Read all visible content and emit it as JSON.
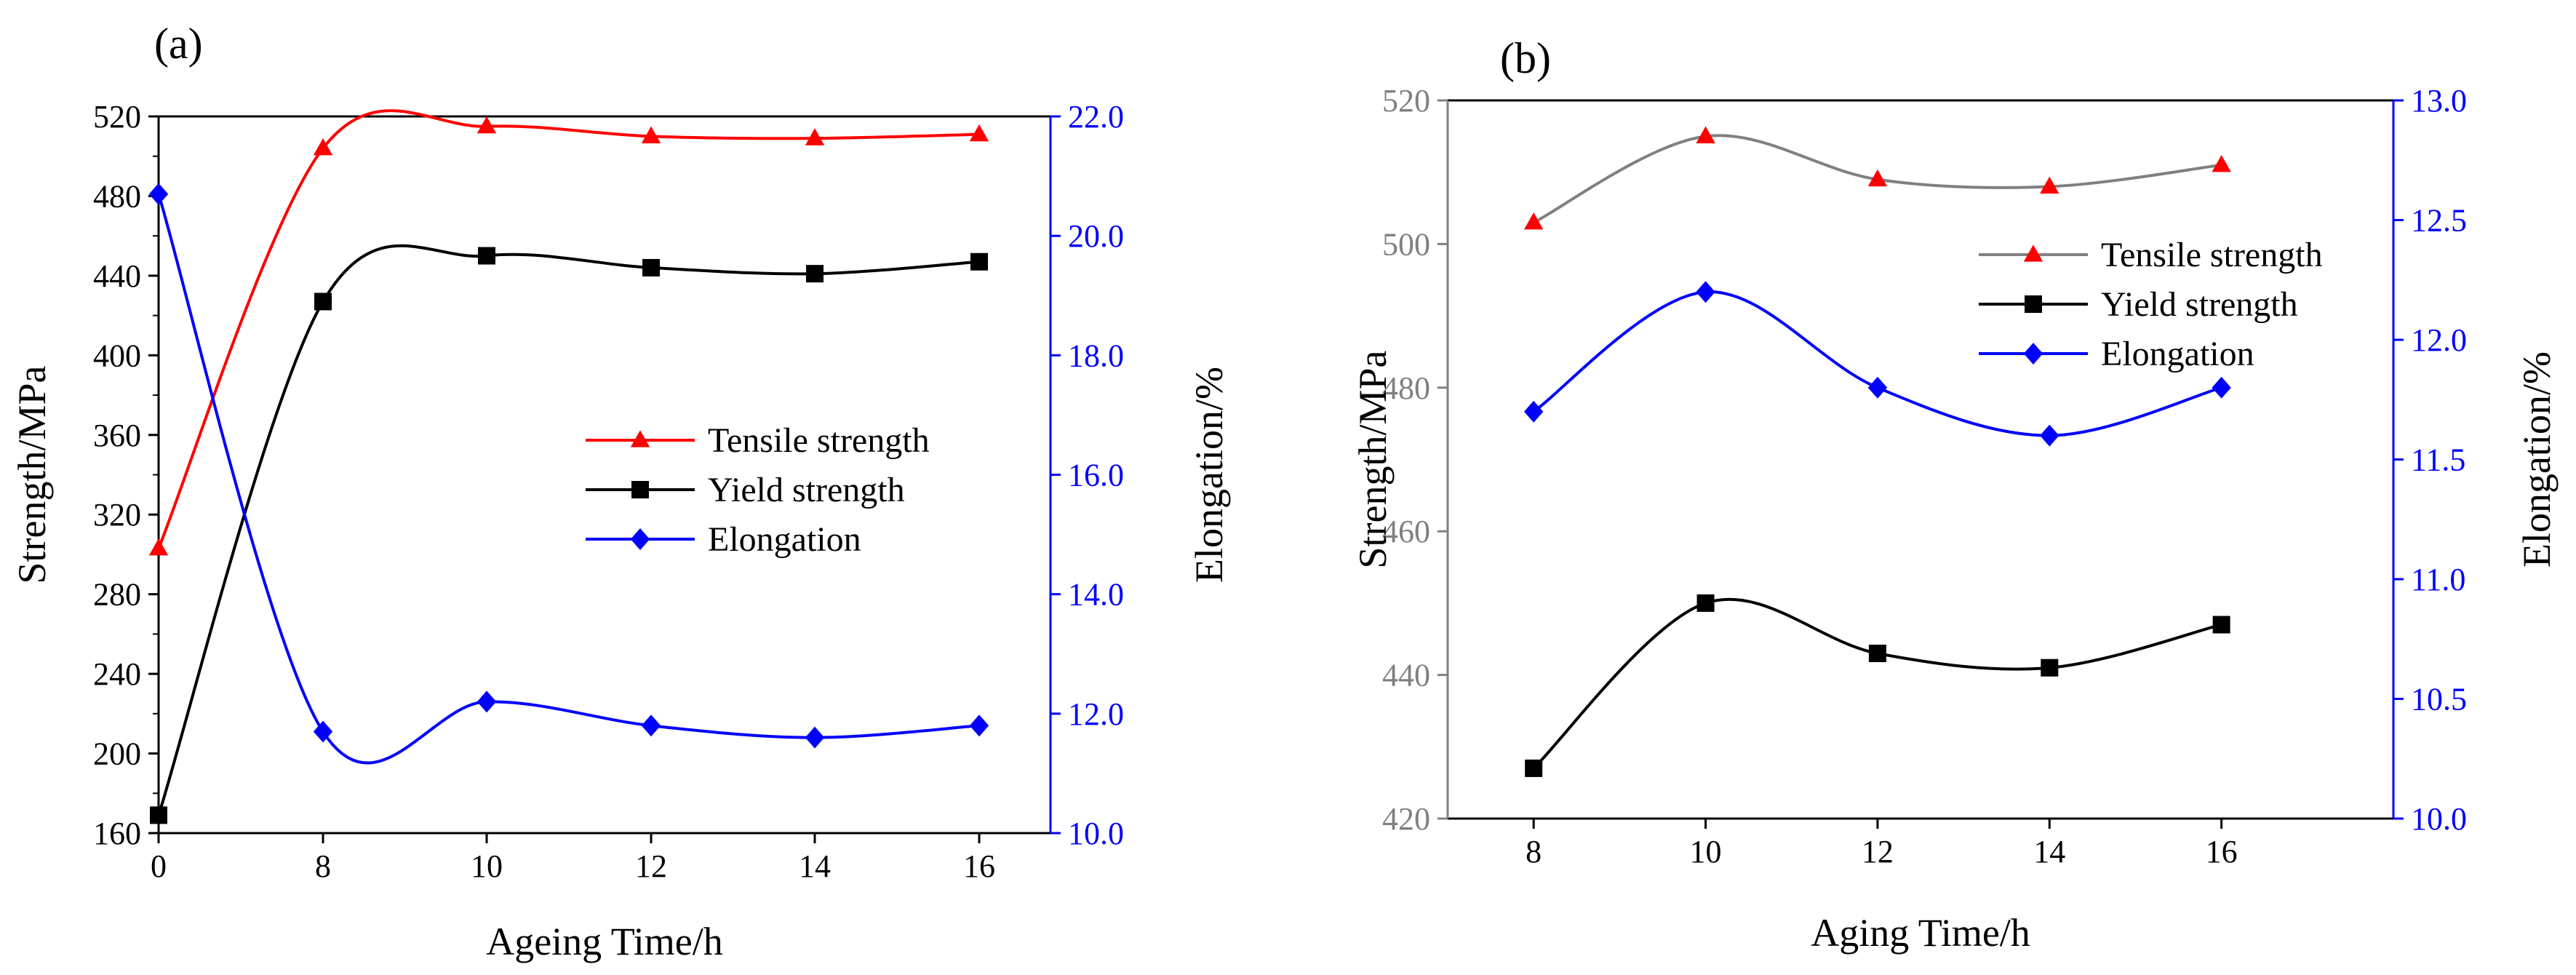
{
  "chart_data": [
    {
      "panel_label": "(a)",
      "type": "line",
      "xlabel": "Ageing Time/h",
      "ylabel_left": "Strength/MPa",
      "ylabel_right": "Elongation/%",
      "x_ticks": [
        "0",
        "8",
        "10",
        "12",
        "14",
        "16"
      ],
      "ylim_left": [
        160,
        520
      ],
      "ylim_right": [
        10.0,
        22.0
      ],
      "y_ticks_left": [
        "160",
        "200",
        "240",
        "280",
        "320",
        "360",
        "400",
        "440",
        "480",
        "520"
      ],
      "y_ticks_right": [
        "10.0",
        "12.0",
        "14.0",
        "16.0",
        "18.0",
        "20.0",
        "22.0"
      ],
      "legend_position": "center-right",
      "series": [
        {
          "name": "Tensile strength",
          "axis": "left",
          "marker": "triangle",
          "color": "#ff0000",
          "x": [
            0,
            8,
            10,
            12,
            14,
            16
          ],
          "values": [
            303,
            504,
            515,
            510,
            509,
            511
          ]
        },
        {
          "name": "Yield strength",
          "axis": "left",
          "marker": "square",
          "color": "#000000",
          "x": [
            0,
            8,
            10,
            12,
            14,
            16
          ],
          "values": [
            169,
            427,
            450,
            444,
            441,
            447
          ]
        },
        {
          "name": "Elongation",
          "axis": "right",
          "marker": "diamond",
          "color": "#0000ff",
          "x": [
            0,
            8,
            10,
            12,
            14,
            16
          ],
          "values": [
            20.7,
            11.7,
            12.2,
            11.8,
            11.6,
            11.8
          ]
        }
      ]
    },
    {
      "panel_label": "(b)",
      "type": "line",
      "xlabel": "Aging Time/h",
      "ylabel_left": "Strength/MPa",
      "ylabel_right": "Elongation/%",
      "x_ticks": [
        "8",
        "10",
        "12",
        "14",
        "16"
      ],
      "xlim": [
        7,
        18
      ],
      "ylim_left": [
        420,
        520
      ],
      "ylim_right": [
        10.0,
        13.0
      ],
      "y_ticks_left": [
        "420",
        "440",
        "460",
        "480",
        "500",
        "520"
      ],
      "y_ticks_right": [
        "10.0",
        "10.5",
        "11.0",
        "11.5",
        "12.0",
        "12.5",
        "13.0"
      ],
      "legend_position": "top-right",
      "series": [
        {
          "name": "Tensile strength",
          "axis": "left",
          "marker": "triangle",
          "line_color": "#808080",
          "color": "#ff0000",
          "x": [
            8,
            10,
            12,
            14,
            16
          ],
          "values": [
            503,
            515,
            509,
            508,
            511
          ]
        },
        {
          "name": "Yield strength",
          "axis": "left",
          "marker": "square",
          "color": "#000000",
          "x": [
            8,
            10,
            12,
            14,
            16
          ],
          "values": [
            427,
            450,
            443,
            441,
            447
          ]
        },
        {
          "name": "Elongation",
          "axis": "right",
          "marker": "diamond",
          "color": "#0000ff",
          "x": [
            8,
            10,
            12,
            14,
            16
          ],
          "values": [
            11.7,
            12.2,
            11.8,
            11.6,
            11.8
          ]
        }
      ]
    }
  ]
}
